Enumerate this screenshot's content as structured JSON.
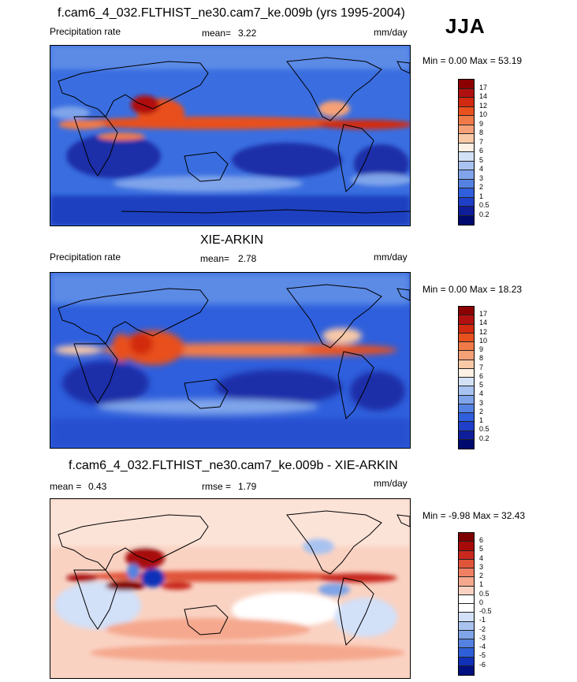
{
  "season": "JJA",
  "panels": [
    {
      "title": "f.cam6_4_032.FLTHIST_ne30.cam7_ke.009b (yrs 1995-2004)",
      "left_label": "Precipitation rate",
      "stat_label": "mean=",
      "stat_value": "3.22",
      "units": "mm/day",
      "minmax": "Min =   0.00 Max =  53.19",
      "levels": [
        "17",
        "14",
        "12",
        "10",
        "9",
        "8",
        "7",
        "6",
        "5",
        "4",
        "3",
        "2",
        "1",
        "0.5",
        "0.2"
      ]
    },
    {
      "title": "XIE-ARKIN",
      "left_label": "Precipitation rate",
      "stat_label": "mean=",
      "stat_value": "2.78",
      "units": "mm/day",
      "minmax": "Min =   0.00 Max =  18.23",
      "levels": [
        "17",
        "14",
        "12",
        "10",
        "9",
        "8",
        "7",
        "6",
        "5",
        "4",
        "3",
        "2",
        "1",
        "0.5",
        "0.2"
      ]
    },
    {
      "title": "f.cam6_4_032.FLTHIST_ne30.cam7_ke.009b - XIE-ARKIN",
      "left_label": "mean =",
      "left_value": "0.43",
      "stat_label": "rmse =",
      "stat_value": "1.79",
      "units": "mm/day",
      "minmax": "Min =  -9.98 Max =  32.43",
      "levels": [
        "6",
        "5",
        "4",
        "3",
        "2",
        "1",
        "0.5",
        "0",
        "-0.5",
        "-1",
        "-2",
        "-3",
        "-4",
        "-5",
        "-6"
      ]
    }
  ],
  "colors": {
    "precip_scale": [
      "#8B0000",
      "#B01010",
      "#D22A10",
      "#E8501E",
      "#F07A48",
      "#F5A077",
      "#F9C9A7",
      "#FDF0E4",
      "#D3E1F7",
      "#A8C3F0",
      "#7FA4EA",
      "#5582E2",
      "#2F5FDC",
      "#1F3FC8",
      "#0E1E9B",
      "#000A6E"
    ],
    "diff_scale": [
      "#7F0000",
      "#A80A0A",
      "#C8281E",
      "#E0553A",
      "#EF8063",
      "#F5A88E",
      "#FAD2C2",
      "#FFFFFF",
      "#FFFFFF",
      "#D2E0F8",
      "#A9C3F0",
      "#7FA4E8",
      "#5582E0",
      "#2F5FD8",
      "#1030B8",
      "#001080"
    ]
  }
}
